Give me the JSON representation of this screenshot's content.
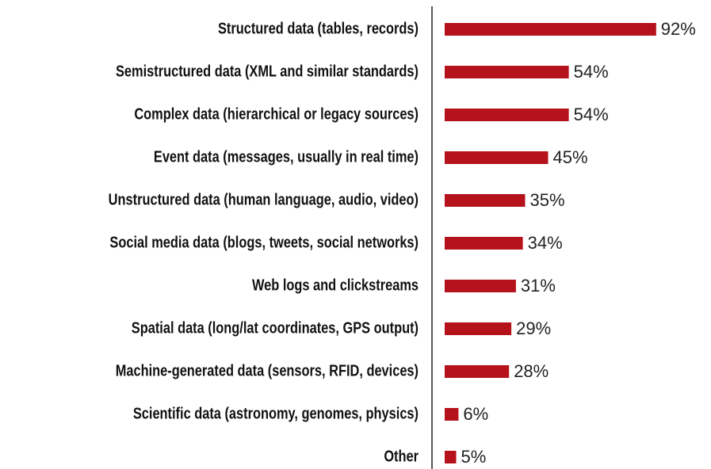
{
  "chart_data": {
    "type": "barh",
    "categories": [
      "Structured data (tables, records)",
      "Semistructured data (XML and similar standards)",
      "Complex data (hierarchical or legacy sources)",
      "Event data (messages, usually in real time)",
      "Unstructured data (human language, audio, video)",
      "Social media data (blogs, tweets, social networks)",
      "Web logs and clickstreams",
      "Spatial data (long/lat coordinates, GPS output)",
      "Machine-generated data (sensors, RFID, devices)",
      "Scientific data (astronomy, genomes, physics)",
      "Other"
    ],
    "values": [
      92,
      54,
      54,
      45,
      35,
      34,
      31,
      29,
      28,
      6,
      5
    ],
    "value_labels": [
      "92%",
      "54%",
      "54%",
      "45%",
      "35%",
      "34%",
      "31%",
      "29%",
      "28%",
      "6%",
      "5%"
    ],
    "color": "#b5121b"
  }
}
